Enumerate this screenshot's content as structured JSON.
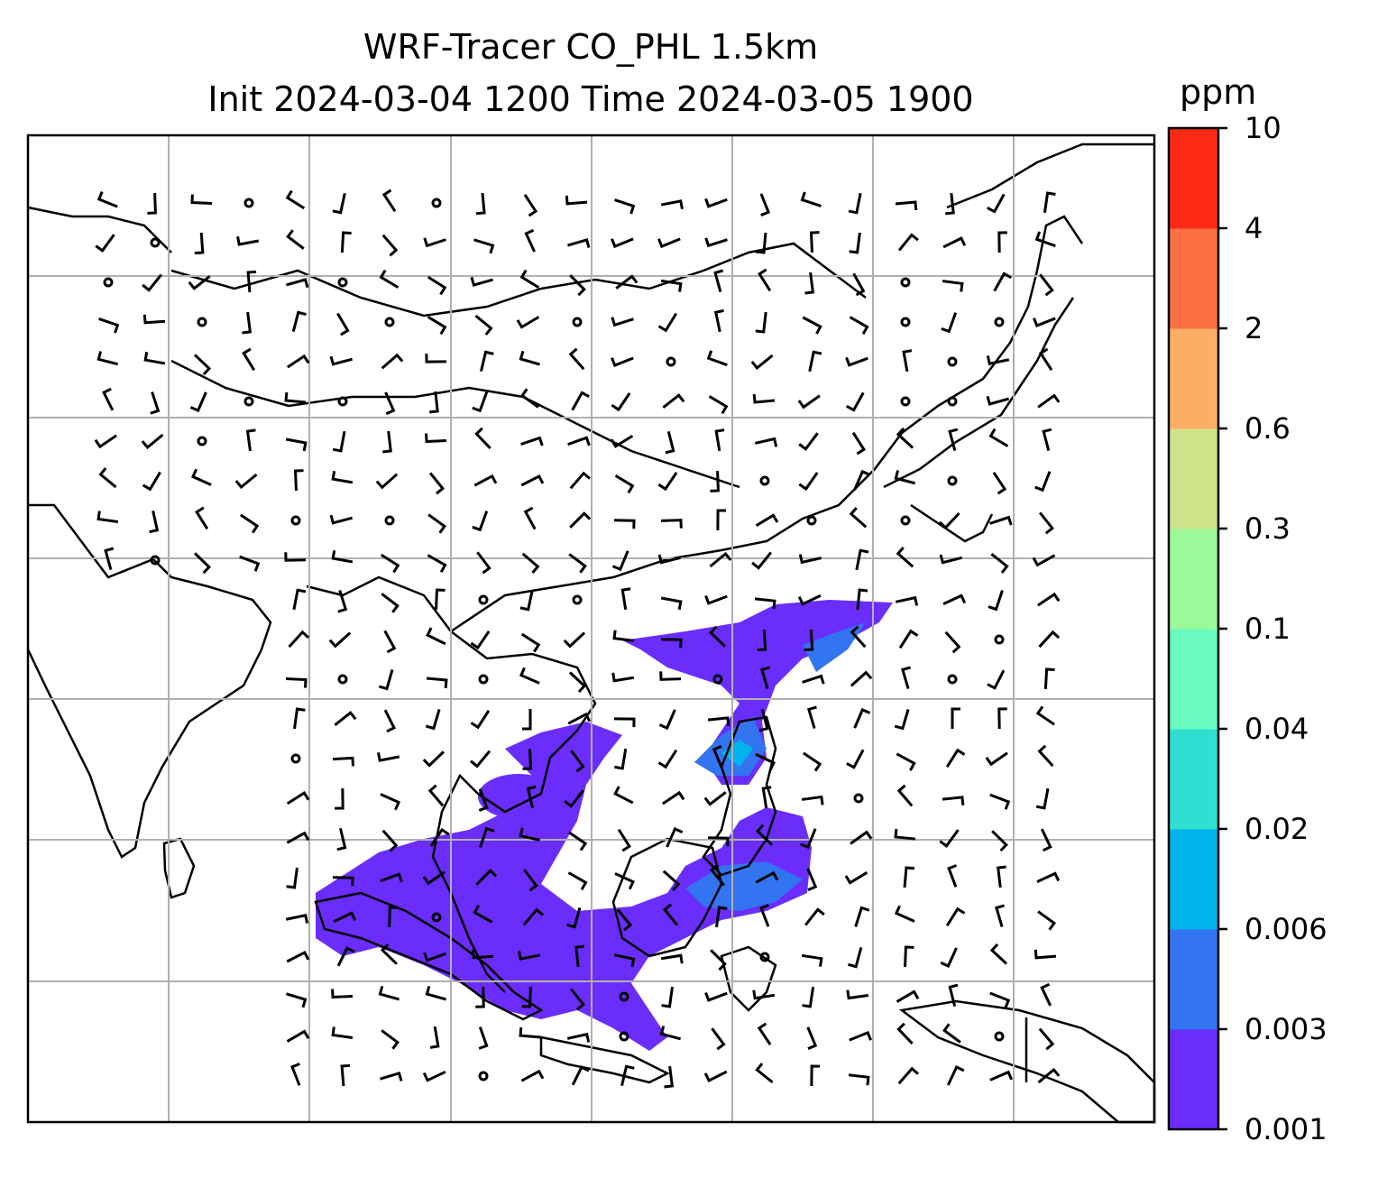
{
  "title_line1": "WRF-Tracer CO_PHL 1.5km",
  "title_line2": "Init 2024-03-04 1200 Time 2024-03-05 1900",
  "colorbar": {
    "unit": "ppm",
    "ticks": [
      "0.001",
      "0.003",
      "0.006",
      "0.02",
      "0.04",
      "0.1",
      "0.3",
      "0.6",
      "2",
      "4",
      "10"
    ],
    "colors": [
      "#6a2dfc",
      "#3374f0",
      "#01b3ec",
      "#31dfd2",
      "#69fbbe",
      "#9cf999",
      "#cfe38a",
      "#fcaf63",
      "#fd7041",
      "#fe2a14"
    ]
  },
  "map": {
    "gridlines": true,
    "coastlines": true,
    "wind_barbs": true
  }
}
